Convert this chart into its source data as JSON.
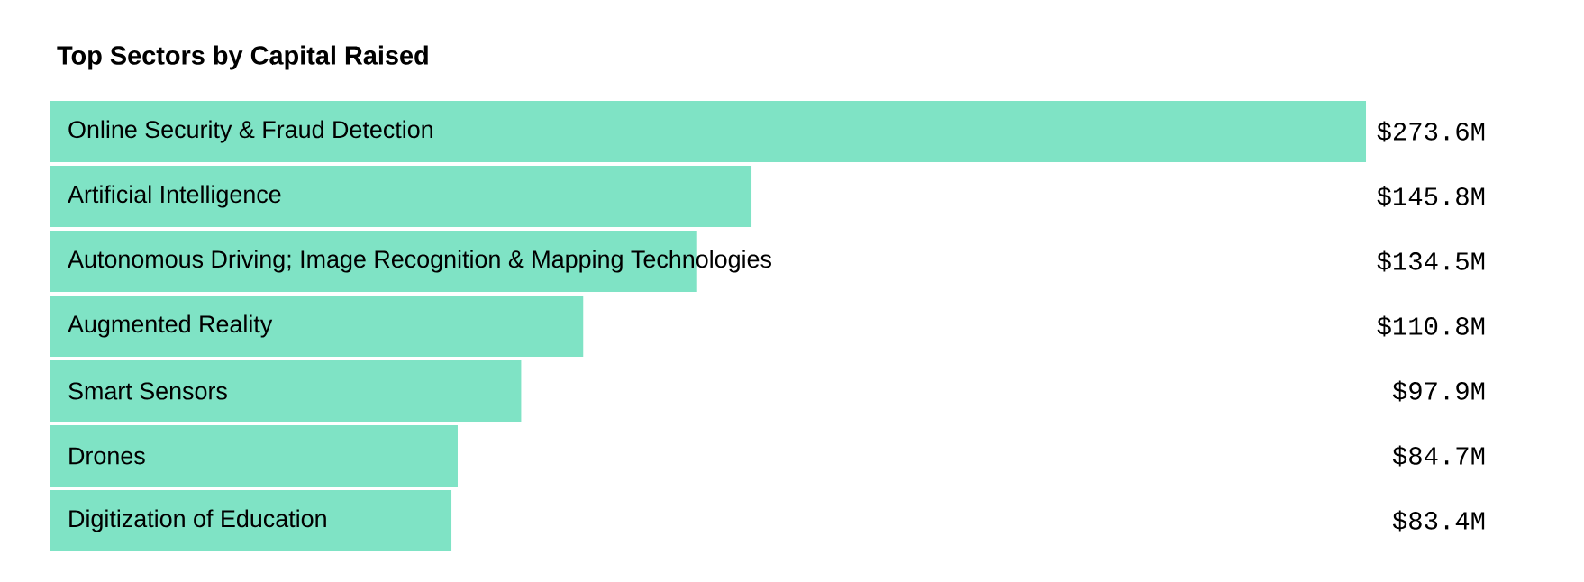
{
  "chart_data": {
    "type": "bar",
    "orientation": "horizontal",
    "title": "Top Sectors by Capital Raised",
    "categories": [
      "Online Security & Fraud Detection",
      "Artificial Intelligence",
      "Autonomous Driving; Image Recognition & Mapping Technologies",
      "Augmented Reality",
      "Smart Sensors",
      "Drones",
      "Digitization of Education"
    ],
    "values": [
      273.6,
      145.8,
      134.5,
      110.8,
      97.9,
      84.7,
      83.4
    ],
    "value_labels": [
      "$273.6M",
      "$145.8M",
      "$134.5M",
      "$110.8M",
      "$97.9M",
      "$84.7M",
      "$83.4M"
    ],
    "color": "#7fe3c5"
  }
}
